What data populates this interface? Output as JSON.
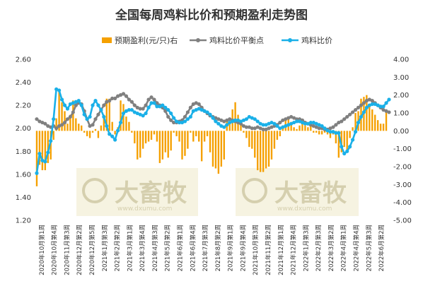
{
  "chart_data": {
    "type": "bar+line",
    "title": "全国每周鸡料比价和预期盈利走势图",
    "legend": [
      "预期盈利(元/只)右",
      "鸡料比价平衡点",
      "鸡料比价"
    ],
    "colors": {
      "bar": "#f5a000",
      "balance": "#808080",
      "ratio": "#1ab0e8"
    },
    "ylim_left": [
      1.2,
      2.6
    ],
    "yticks_left": [
      "1.20",
      "1.40",
      "1.60",
      "1.80",
      "2.00",
      "2.20",
      "2.40",
      "2.60"
    ],
    "ylim_right": [
      -5,
      4
    ],
    "yticks_right": [
      "4.00",
      "3.00",
      "2.00",
      "1.00",
      "0.00",
      "-1.00",
      "-2.00",
      "-3.00",
      "-4.00",
      "-5.00"
    ],
    "x_labels": [
      "2020年10月第1周",
      "2020年10月第4周",
      "2020年11月第3周",
      "2020年12月第2周",
      "2020年12月第5周",
      "2021年1月第3周",
      "2021年2月第2周",
      "2021年3月第1周",
      "2021年3月第4周",
      "2021年4月第3周",
      "2021年5月第2周",
      "2021年6月第1周",
      "2021年6月第4周",
      "2021年7月第3周",
      "2021年8月第2周",
      "2021年9月第1周",
      "2021年9月第4周",
      "2021年10月第3周",
      "2021年11月第2周",
      "2021年12月第1周",
      "2021年12月第4周",
      "2022年1月第3周",
      "2022年2月第3周",
      "2022年3月第2周",
      "2022年4月第1周",
      "2022年4月第4周",
      "2022年5月第3周",
      "2022年6月第2周"
    ],
    "series": [
      {
        "name": "预期盈利(元/只)右",
        "type": "bar",
        "axis": "right",
        "values": [
          -3.1,
          -1.9,
          -2.2,
          -2.2,
          -1.8,
          -1.6,
          -0.5,
          0.7,
          2.3,
          1.6,
          1.1,
          0.4,
          0.9,
          1.7,
          0.7,
          0.4,
          0.3,
          -0.1,
          -0.3,
          -0.4,
          -0.1,
          0.1,
          -0.4,
          0.3,
          0.9,
          1.8,
          1.8,
          0.5,
          -0.2,
          0.2,
          1.7,
          1.5,
          0.8,
          0.5,
          -0.1,
          -0.7,
          -1.6,
          -1.5,
          -1.0,
          -0.7,
          -0.6,
          -0.5,
          -0.2,
          -0.6,
          -1.8,
          -1.6,
          -1.2,
          -1.5,
          -1.1,
          -0.1,
          -0.3,
          -0.6,
          -1.6,
          -1.4,
          -1.0,
          -0.1,
          -0.6,
          -0.3,
          -0.6,
          -1.7,
          -0.6,
          -0.3,
          -1.2,
          -2.0,
          -2.1,
          -2.4,
          -2.0,
          -1.6,
          0.6,
          0.5,
          1.2,
          1.6,
          0.9,
          0.5,
          -0.1,
          -0.4,
          -0.9,
          -1.0,
          -1.5,
          -2.2,
          -2.3,
          -2.3,
          -2.1,
          -2.0,
          -1.6,
          -1.0,
          -0.5,
          -0.3,
          0.3,
          0.6,
          0.8,
          0.5,
          0.2,
          0.1,
          0.3,
          0.4,
          0.3,
          0.2,
          0.3,
          -0.1,
          -0.1,
          -0.2,
          -0.2,
          -0.1,
          -0.2,
          -0.4,
          -0.2,
          -0.7,
          -1.5,
          -1.2,
          -0.9,
          -1.2,
          -0.4,
          0.2,
          1.0,
          1.1,
          1.8,
          1.9,
          2.0,
          1.4,
          1.2,
          0.9,
          0.6,
          0.4,
          0.4,
          1.1
        ],
        "note": "right-axis values, one bar per week"
      },
      {
        "name": "鸡料比价平衡点",
        "type": "line",
        "axis": "left",
        "values": [
          2.08,
          2.06,
          2.05,
          2.04,
          2.02,
          2.01,
          2.02,
          2.0,
          2.02,
          2.03,
          2.05,
          2.08,
          2.1,
          2.14,
          2.2,
          2.22,
          2.21,
          2.15,
          2.08,
          2.02,
          2.03,
          2.08,
          2.12,
          2.16,
          2.2,
          2.23,
          2.24,
          2.26,
          2.26,
          2.28,
          2.29,
          2.3,
          2.28,
          2.25,
          2.23,
          2.2,
          2.18,
          2.17,
          2.17,
          2.2,
          2.25,
          2.27,
          2.25,
          2.22,
          2.2,
          2.18,
          2.15,
          2.1,
          2.07,
          2.05,
          2.05,
          2.06,
          2.07,
          2.1,
          2.14,
          2.18,
          2.21,
          2.22,
          2.21,
          2.18,
          2.15,
          2.13,
          2.11,
          2.1,
          2.09,
          2.08,
          2.07,
          2.06,
          2.07,
          2.08,
          2.07,
          2.06,
          2.05,
          2.04,
          2.02,
          2.01,
          2.01,
          2.0,
          2.0,
          2.01,
          2.0,
          1.99,
          1.99,
          2.0,
          2.01,
          2.02,
          2.03,
          2.05,
          2.07,
          2.08,
          2.09,
          2.1,
          2.09,
          2.08,
          2.08,
          2.07,
          2.05,
          2.04,
          2.03,
          2.02,
          2.01,
          2.0,
          2.0,
          1.99,
          1.99,
          2.0,
          2.01,
          2.03,
          2.05,
          2.06,
          2.08,
          2.1,
          2.12,
          2.14,
          2.16,
          2.18,
          2.2,
          2.22,
          2.24,
          2.25,
          2.24,
          2.22,
          2.2,
          2.18,
          2.16,
          2.15,
          2.14
        ]
      },
      {
        "name": "鸡料比价",
        "type": "line",
        "axis": "left",
        "values": [
          1.61,
          1.78,
          1.72,
          1.71,
          1.79,
          1.89,
          2.08,
          2.34,
          2.33,
          2.25,
          2.2,
          2.17,
          2.21,
          2.22,
          2.23,
          2.24,
          2.2,
          2.12,
          2.08,
          2.1,
          2.2,
          2.24,
          2.2,
          2.16,
          2.1,
          2.02,
          1.95,
          1.93,
          1.9,
          1.98,
          2.05,
          2.13,
          2.15,
          2.16,
          2.16,
          2.14,
          2.13,
          2.12,
          2.11,
          2.13,
          2.18,
          2.22,
          2.22,
          2.19,
          2.19,
          2.2,
          2.18,
          2.16,
          2.13,
          2.09,
          2.06,
          2.05,
          2.05,
          2.06,
          2.08,
          2.1,
          2.15,
          2.16,
          2.17,
          2.16,
          2.15,
          2.14,
          2.12,
          2.09,
          2.06,
          2.04,
          2.02,
          2.01,
          2.03,
          2.05,
          2.06,
          2.07,
          2.07,
          2.06,
          2.07,
          2.08,
          2.1,
          2.09,
          2.08,
          2.06,
          2.04,
          2.03,
          2.03,
          2.04,
          2.05,
          2.04,
          2.02,
          2.0,
          2.01,
          2.02,
          2.03,
          2.04,
          2.05,
          2.06,
          2.06,
          2.05,
          2.04,
          2.04,
          2.05,
          2.05,
          2.04,
          2.03,
          2.02,
          2.0,
          1.98,
          1.97,
          1.97,
          1.96,
          1.96,
          1.84,
          1.78,
          1.8,
          1.84,
          1.9,
          1.97,
          2.05,
          2.1,
          2.14,
          2.18,
          2.2,
          2.21,
          2.21,
          2.2,
          2.19,
          2.19,
          2.22,
          2.25
        ]
      }
    ],
    "watermark": {
      "text": "大畜牧",
      "sub": "www.dxumu.com"
    }
  }
}
